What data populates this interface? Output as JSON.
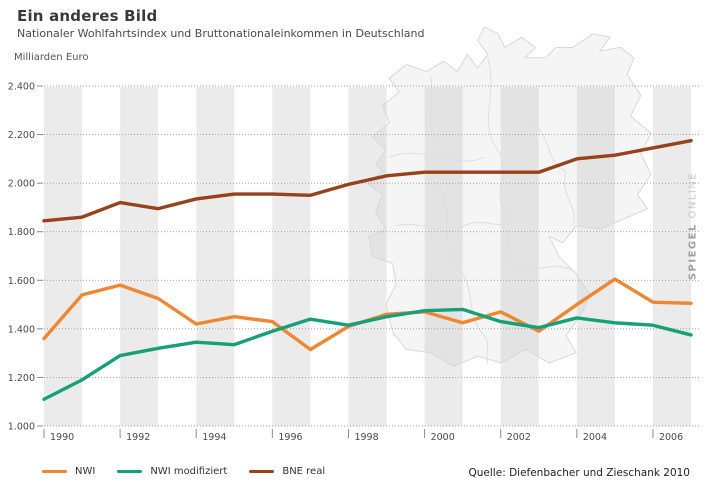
{
  "header": {
    "title": "Ein anderes Bild",
    "subtitle": "Nationaler Wohlfahrtsindex und Bruttonationaleinkommen in Deutschland"
  },
  "source": "Quelle: Diefenbacher und Zieschank 2010",
  "watermark": {
    "bold": "SPIEGEL",
    "light": "ONLINE"
  },
  "colors": {
    "stripe": "#ebebeb",
    "grid": "#999999",
    "tick": "#8c8c8c",
    "axis_text": "#4a4a4a",
    "map_stroke": "#d8d8d8",
    "map_fill": "rgba(160,160,160,0.10)",
    "nwi_orange": "#ef8632",
    "nwi_mod_green": "#17a077",
    "bne_brown": "#95421d"
  },
  "chart_data": {
    "type": "line",
    "title": "Ein anderes Bild",
    "subtitle": "Nationaler Wohlfahrtsindex und Bruttonationaleinkommen in Deutschland",
    "xlabel": "",
    "ylabel": "Milliarden Euro",
    "ylim": [
      1000,
      2400
    ],
    "grid": "horizontal dotted",
    "background": "alternating one-year gray bands starting at even years, faint Germany map watermark",
    "legend_position": "bottom-left",
    "x": [
      1990,
      1991,
      1992,
      1993,
      1994,
      1995,
      1996,
      1997,
      1998,
      1999,
      2000,
      2001,
      2002,
      2003,
      2004,
      2005,
      2006,
      2007
    ],
    "x_ticks": [
      1990,
      1992,
      1994,
      1996,
      1998,
      2000,
      2002,
      2004,
      2006
    ],
    "x_tick_labels": [
      "1990",
      "1992",
      "1994",
      "1996",
      "1998",
      "2000",
      "2002",
      "2004",
      "2006"
    ],
    "y_ticks": [
      1000,
      1200,
      1400,
      1600,
      1800,
      2000,
      2200,
      2400
    ],
    "y_tick_labels": [
      "1.000",
      "1.200",
      "1.400",
      "1.600",
      "1.800",
      "2.000",
      "2.200",
      "2.400"
    ],
    "series": [
      {
        "name": "NWI",
        "color": "#ef8632",
        "values": [
          1360,
          1540,
          1580,
          1525,
          1420,
          1450,
          1430,
          1315,
          1410,
          1460,
          1470,
          1425,
          1470,
          1390,
          1500,
          1605,
          1510,
          1505
        ]
      },
      {
        "name": "NWI modifiziert",
        "color": "#17a077",
        "values": [
          1110,
          1190,
          1290,
          1320,
          1345,
          1335,
          1390,
          1440,
          1415,
          1450,
          1475,
          1480,
          1430,
          1405,
          1445,
          1425,
          1415,
          1375
        ]
      },
      {
        "name": "BNE real",
        "color": "#95421d",
        "values": [
          1845,
          1860,
          1920,
          1895,
          1935,
          1955,
          1955,
          1950,
          1995,
          2030,
          2045,
          2045,
          2045,
          2045,
          2100,
          2115,
          2145,
          2175
        ]
      }
    ]
  }
}
